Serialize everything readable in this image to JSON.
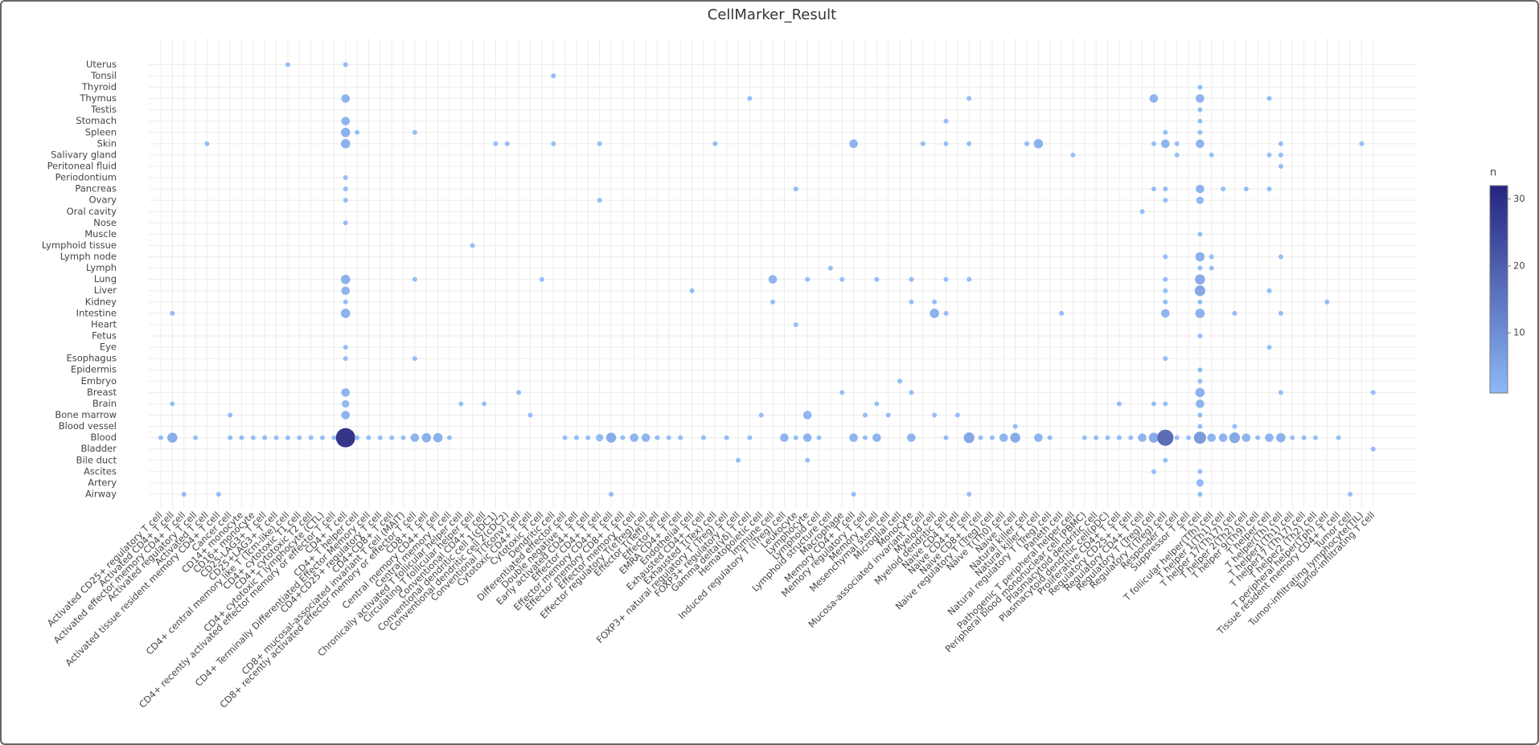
{
  "chart_data": {
    "type": "bubble",
    "title": "CellMarker_Result",
    "grid": true,
    "categories": [
      "Activated CD25+ regulatory T cell",
      "Activated CD4+ T cell",
      "Activated effector memory CD4+ T cell",
      "Activated regulatory T cell",
      "Activated T cell",
      "Activated tissue resident memory CD4+ T cell",
      "Cancer cell",
      "CD14+ monocyte",
      "CD16+ monocyte",
      "CD25-LAG3+ T cell",
      "CD25+LAG3+ T cell",
      "CD4+ central memory like T (Tcm-like) cell",
      "CD4+ cytotoxic T1 cell",
      "CD4+ cytotoxic T2 cell",
      "CD4+ cytotoxic T lymphocyte (CTL)",
      "CD4+ recently activated effector memory or effector T cell",
      "CD4+ T cell",
      "CD4+ T helper cell",
      "CD4+ Terminally Differentiated Effector Memory cell",
      "CD4+CD25+ regulatory T cell",
      "CD4+CD8+ T cell",
      "CD8+ mucosal-associated invariant T cell (MAIT)",
      "CD8+ recently activated effector memory or effector T cell",
      "CD8+ T cell",
      "Central memory CD4+ T cell",
      "Central memory T cell",
      "Chronically activated T follicular helper cell",
      "Circulating T follicular helper cell",
      "Conventional CD4+ T cell",
      "Conventional dendritic cell 1(cDC1)",
      "Conventional dendritic cell 2(cDC2)",
      "Conventional T(Tconv) cell",
      "Cytotoxic CD4+ T cell",
      "Cytotoxic T cell",
      "Dendritic cell",
      "Differentiated effector cell",
      "Double negative T cell",
      "Early activated CD4+ T cell",
      "Effector CD4+ T cell",
      "Effector memory CD4+ T cell",
      "Effector memory CD8+ T cell",
      "Effector memory T cell",
      "Effector regulatory T(eTreg) cell",
      "Effector T(Teff) cell",
      "Effector T cell",
      "EMRA CD4+ T cell",
      "Endothelial cell",
      "Exhausted CD4+ T cell",
      "Exhausted T(Tex) cell",
      "FOXP3+ natural regulatory T (Treg) cell",
      "FOXP3+ regulatory T cell",
      "Gamma delta(γδ) T cell",
      "Hematopoietic cell",
      "Immune cell",
      "Induced regulatory T (iTreg) cell",
      "Leukocyte",
      "Lymphocyte",
      "Lymphoid cell",
      "Lymphoid structure cell",
      "Macrophage",
      "Memory CD4+ T cell",
      "Memory regulatory T cell",
      "Memory T cell",
      "Mesenchymal stem cell",
      "Microglial cell",
      "Monocyte",
      "Mucosa-associated invariant T cell",
      "Myeloid cell",
      "Myeloid dendritic cell",
      "Naive CD4 T cell",
      "Naive CD4+ T cell",
      "Naive CD8+ T cell",
      "Naive regulatory T (Treg) cell",
      "Naive T(Th0) cell",
      "Naive T cell",
      "Natural killer cell",
      "Natural killer T cell",
      "Natural regulatory T (Treg) cell",
      "Paneth cell",
      "Pathogenic T peripheral helper cell",
      "Peripheral blood mononuclear cell (PBMC)",
      "Plasmacytoid dendritic cell",
      "Plasmacytoid dendritic cell(pDC)",
      "Proliferative CD4+ T cell",
      "Regulatory CD25+ T cell",
      "Regulatory CD4+ T cell",
      "Regulatory T (Treg) cell",
      "Regulatory T(Treg) cell",
      "Responder T cell",
      "Suppressor T cell",
      "T cell",
      "T follicular helper(Tfh) cell",
      "T helper 1(Th1) cell",
      "T helper 17(Th17) cell",
      "T helper 2(Th2) cell",
      "T helper 9(Th9) cell",
      "T helper cell",
      "T helper(Th) cell",
      "T helper1(Th1) cell",
      "T helper17 (Th17) cell",
      "T helper2 (Th2) cell",
      "T peripheral helper(Tph) cell",
      "Tissue resident memory CD4+ T cell",
      "Tumor cell",
      "Tumor-infiltrating lymphocyte(TIL)",
      "Tumor-infiltrating T cell"
    ],
    "series": [
      {
        "name": "Airway",
        "x": [
          "Activated effector memory CD4+ T cell",
          "Activated tissue resident memory CD4+ T cell",
          "Effector memory CD4+ T cell",
          "Memory CD4+ T cell",
          "Naive CD4+ T cell",
          "T cell",
          "Tumor cell"
        ],
        "values": [
          1,
          1,
          1,
          1,
          1,
          1,
          1
        ]
      },
      {
        "name": "Artery",
        "x": [
          "T cell"
        ],
        "values": [
          2
        ]
      },
      {
        "name": "Ascites",
        "x": [
          "Regulatory T (Treg) cell",
          "T cell"
        ],
        "values": [
          1,
          1
        ]
      },
      {
        "name": "Bile duct",
        "x": [
          "FOXP3+ regulatory T cell",
          "Lymphocyte",
          "Regulatory T(Treg) cell"
        ],
        "values": [
          1,
          1,
          1
        ]
      },
      {
        "name": "Bladder",
        "x": [
          "Tumor-infiltrating T cell"
        ],
        "values": [
          1
        ]
      },
      {
        "name": "Blood",
        "x": [
          "Activated CD25+ regulatory T cell",
          "Activated CD4+ T cell",
          "Activated regulatory T cell",
          "Cancer cell",
          "CD14+ monocyte",
          "CD16+ monocyte",
          "CD25-LAG3+ T cell",
          "CD25+LAG3+ T cell",
          "CD4+ central memory like T (Tcm-like) cell",
          "CD4+ cytotoxic T1 cell",
          "CD4+ cytotoxic T2 cell",
          "CD4+ cytotoxic T lymphocyte (CTL)",
          "CD4+ recently activated effector memory or effector T cell",
          "CD4+ T cell",
          "CD4+ T helper cell",
          "CD4+ Terminally Differentiated Effector Memory cell",
          "CD4+CD25+ regulatory T cell",
          "CD4+CD8+ T cell",
          "CD8+ mucosal-associated invariant T cell (MAIT)",
          "CD8+ recently activated effector memory or effector T cell",
          "CD8+ T cell",
          "Central memory CD4+ T cell",
          "Central memory T cell",
          "Differentiated effector cell",
          "Double negative T cell",
          "Early activated CD4+ T cell",
          "Effector CD4+ T cell",
          "Effector memory CD4+ T cell",
          "Effector memory CD8+ T cell",
          "Effector memory T cell",
          "Effector regulatory T(eTreg) cell",
          "Effector T(Teff) cell",
          "Effector T cell",
          "EMRA CD4+ T cell",
          "Exhausted CD4+ T cell",
          "FOXP3+ natural regulatory T (Treg) cell",
          "Gamma delta(γδ) T cell",
          "Induced regulatory T (iTreg) cell",
          "Leukocyte",
          "Lymphocyte",
          "Lymphoid cell",
          "Memory CD4+ T cell",
          "Memory regulatory T cell",
          "Memory T cell",
          "Monocyte",
          "Myeloid dendritic cell",
          "Naive CD4+ T cell",
          "Naive CD8+ T cell",
          "Naive regulatory T (Treg) cell",
          "Naive T(Th0) cell",
          "Naive T cell",
          "Natural killer T cell",
          "Natural regulatory T (Treg) cell",
          "Peripheral blood mononuclear cell (PBMC)",
          "Plasmacytoid dendritic cell",
          "Plasmacytoid dendritic cell(pDC)",
          "Proliferative CD4+ T cell",
          "Regulatory CD25+ T cell",
          "Regulatory CD4+ T cell",
          "Regulatory T (Treg) cell",
          "Regulatory T(Treg) cell",
          "Responder T cell",
          "Suppressor T cell",
          "T cell",
          "T follicular helper(Tfh) cell",
          "T helper 1(Th1) cell",
          "T helper 17(Th17) cell",
          "T helper 2(Th2) cell",
          "T helper 9(Th9) cell",
          "T helper cell",
          "T helper(Th) cell",
          "T helper1(Th1) cell",
          "T helper17 (Th17) cell",
          "T helper2 (Th2) cell",
          "Tissue resident memory CD4+ T cell"
        ],
        "values": [
          1,
          5,
          1,
          1,
          1,
          1,
          1,
          1,
          1,
          1,
          1,
          1,
          1,
          32,
          1,
          1,
          1,
          1,
          1,
          3,
          4,
          4,
          1,
          1,
          1,
          1,
          2,
          5,
          1,
          3,
          3,
          1,
          1,
          1,
          1,
          1,
          1,
          3,
          1,
          3,
          1,
          3,
          1,
          3,
          3,
          1,
          6,
          1,
          1,
          3,
          5,
          3,
          1,
          1,
          1,
          1,
          1,
          1,
          3,
          5,
          20,
          1,
          1,
          9,
          3,
          3,
          6,
          3,
          1,
          3,
          4,
          1,
          1,
          1,
          1
        ]
      },
      {
        "name": "Blood vessel",
        "x": [
          "Naive T cell",
          "T cell",
          "T helper 17(Th17) cell"
        ],
        "values": [
          1,
          1,
          1
        ]
      },
      {
        "name": "Bone marrow",
        "x": [
          "Cancer cell",
          "CD4+ T cell",
          "Cytotoxic CD4+ T cell",
          "Hematopoietic cell",
          "Lymphocyte",
          "Memory regulatory T cell",
          "Mesenchymal stem cell",
          "Myeloid cell",
          "Naive CD4 T cell",
          "T cell"
        ],
        "values": [
          1,
          3,
          1,
          1,
          3,
          1,
          1,
          1,
          1,
          1
        ]
      },
      {
        "name": "Brain",
        "x": [
          "Activated CD4+ T cell",
          "CD4+ T cell",
          "Chronically activated T follicular helper cell",
          "Conventional CD4+ T cell",
          "Memory T cell",
          "Proliferative CD4+ T cell",
          "Regulatory T (Treg) cell",
          "Regulatory T(Treg) cell",
          "T cell"
        ],
        "values": [
          1,
          2,
          1,
          1,
          1,
          1,
          1,
          1,
          3
        ]
      },
      {
        "name": "Breast",
        "x": [
          "CD4+ T cell",
          "Conventional T(Tconv) cell",
          "Macrophage",
          "Monocyte",
          "T cell",
          "T helper(Th) cell",
          "Tumor-infiltrating T cell"
        ],
        "values": [
          3,
          1,
          1,
          1,
          4,
          1,
          1
        ]
      },
      {
        "name": "Embryo",
        "x": [
          "Microglial cell",
          "T cell"
        ],
        "values": [
          1,
          1
        ]
      },
      {
        "name": "Epidermis",
        "x": [
          "T cell"
        ],
        "values": [
          1
        ]
      },
      {
        "name": "Esophagus",
        "x": [
          "CD4+ T cell",
          "CD8+ recently activated effector memory or effector T cell",
          "Regulatory T(Treg) cell"
        ],
        "values": [
          1,
          1,
          1
        ]
      },
      {
        "name": "Eye",
        "x": [
          "CD4+ T cell",
          "T helper cell"
        ],
        "values": [
          1,
          1
        ]
      },
      {
        "name": "Fetus",
        "x": [
          "T cell"
        ],
        "values": [
          1
        ]
      },
      {
        "name": "Heart",
        "x": [
          "Leukocyte"
        ],
        "values": [
          1
        ]
      },
      {
        "name": "Intestine",
        "x": [
          "Activated CD4+ T cell",
          "CD4+ T cell",
          "Myeloid cell",
          "Myeloid dendritic cell",
          "Paneth cell",
          "Regulatory T(Treg) cell",
          "T cell",
          "T helper 17(Th17) cell",
          "T helper(Th) cell"
        ],
        "values": [
          1,
          4,
          4,
          1,
          1,
          3,
          4,
          1,
          1
        ]
      },
      {
        "name": "Kidney",
        "x": [
          "CD4+ T cell",
          "Immune cell",
          "Monocyte",
          "Myeloid cell",
          "Regulatory T(Treg) cell",
          "T cell",
          "T peripheral helper(Tph) cell"
        ],
        "values": [
          1,
          1,
          1,
          1,
          1,
          1,
          1
        ]
      },
      {
        "name": "Liver",
        "x": [
          "CD4+ T cell",
          "Endothelial cell",
          "Regulatory T(Treg) cell",
          "T cell",
          "T helper cell"
        ],
        "values": [
          3,
          1,
          1,
          6,
          1
        ]
      },
      {
        "name": "Lung",
        "x": [
          "CD4+ T cell",
          "CD8+ recently activated effector memory or effector T cell",
          "Cytotoxic T cell",
          "Immune cell",
          "Lymphocyte",
          "Macrophage",
          "Memory T cell",
          "Monocyte",
          "Myeloid dendritic cell",
          "Naive CD4+ T cell",
          "Regulatory T(Treg) cell",
          "T cell"
        ],
        "values": [
          4,
          1,
          1,
          3,
          1,
          1,
          1,
          1,
          1,
          1,
          1,
          5
        ]
      },
      {
        "name": "Lymph",
        "x": [
          "Lymphoid structure cell",
          "T cell",
          "T follicular helper(Tfh) cell"
        ],
        "values": [
          1,
          1,
          1
        ]
      },
      {
        "name": "Lymph node",
        "x": [
          "Regulatory T(Treg) cell",
          "T cell",
          "T follicular helper(Tfh) cell",
          "T helper(Th) cell"
        ],
        "values": [
          1,
          4,
          1,
          1
        ]
      },
      {
        "name": "Lymphoid tissue",
        "x": [
          "Circulating T follicular helper cell"
        ],
        "values": [
          1
        ]
      },
      {
        "name": "Muscle",
        "x": [
          "T cell"
        ],
        "values": [
          1
        ]
      },
      {
        "name": "Nose",
        "x": [
          "CD4+ T cell"
        ],
        "values": [
          1
        ]
      },
      {
        "name": "Oral cavity",
        "x": [
          "Regulatory CD4+ T cell"
        ],
        "values": [
          1
        ]
      },
      {
        "name": "Ovary",
        "x": [
          "CD4+ T cell",
          "Effector CD4+ T cell",
          "Regulatory T(Treg) cell",
          "T cell"
        ],
        "values": [
          1,
          1,
          1,
          2
        ]
      },
      {
        "name": "Pancreas",
        "x": [
          "CD4+ T cell",
          "Leukocyte",
          "Regulatory T (Treg) cell",
          "Regulatory T(Treg) cell",
          "T cell",
          "T helper 1(Th1) cell",
          "T helper 2(Th2) cell",
          "T helper cell"
        ],
        "values": [
          1,
          1,
          1,
          1,
          3,
          1,
          1,
          1
        ]
      },
      {
        "name": "Periodontium",
        "x": [
          "CD4+ T cell"
        ],
        "values": [
          1
        ]
      },
      {
        "name": "Peritoneal fluid",
        "x": [
          "T helper(Th) cell"
        ],
        "values": [
          1
        ]
      },
      {
        "name": "Salivary gland",
        "x": [
          "Pathogenic T peripheral helper cell",
          "Responder T cell",
          "T follicular helper(Tfh) cell",
          "T helper cell",
          "T helper(Th) cell"
        ],
        "values": [
          1,
          1,
          1,
          1,
          1
        ]
      },
      {
        "name": "Skin",
        "x": [
          "Activated T cell",
          "CD4+ T cell",
          "Conventional dendritic cell 1(cDC1)",
          "Conventional dendritic cell 2(cDC2)",
          "Dendritic cell",
          "Effector CD4+ T cell",
          "Exhausted T(Tex) cell",
          "Memory CD4+ T cell",
          "Mucosa-associated invariant T cell",
          "Myeloid dendritic cell",
          "Naive CD4+ T cell",
          "Natural killer cell",
          "Natural killer T cell",
          "Regulatory T (Treg) cell",
          "Regulatory T(Treg) cell",
          "Responder T cell",
          "T cell",
          "T helper(Th) cell",
          "Tumor-infiltrating lymphocyte(TIL)"
        ],
        "values": [
          1,
          4,
          1,
          1,
          1,
          1,
          1,
          3,
          1,
          1,
          1,
          1,
          4,
          1,
          3,
          1,
          3,
          1,
          1
        ]
      },
      {
        "name": "Spleen",
        "x": [
          "CD4+ T cell",
          "CD4+ T helper cell",
          "CD8+ recently activated effector memory or effector T cell",
          "Regulatory T(Treg) cell",
          "T cell"
        ],
        "values": [
          4,
          1,
          1,
          1,
          1
        ]
      },
      {
        "name": "Stomach",
        "x": [
          "CD4+ T cell",
          "Myeloid dendritic cell",
          "T cell"
        ],
        "values": [
          3,
          1,
          1
        ]
      },
      {
        "name": "Testis",
        "x": [
          "T cell"
        ],
        "values": [
          1
        ]
      },
      {
        "name": "Thymus",
        "x": [
          "CD4+ T cell",
          "Gamma delta(γδ) T cell",
          "Naive CD4+ T cell",
          "Regulatory T (Treg) cell",
          "T cell",
          "T helper cell"
        ],
        "values": [
          3,
          1,
          1,
          3,
          3,
          1
        ]
      },
      {
        "name": "Thyroid",
        "x": [
          "T cell"
        ],
        "values": [
          1
        ]
      },
      {
        "name": "Tonsil",
        "x": [
          "Dendritic cell"
        ],
        "values": [
          1
        ]
      },
      {
        "name": "Uterus",
        "x": [
          "CD4+ central memory like T (Tcm-like) cell",
          "CD4+ T cell"
        ],
        "values": [
          1,
          1
        ]
      }
    ],
    "colorbar": {
      "title": "n",
      "range": [
        1,
        32
      ],
      "ticks": [
        10,
        20,
        30
      ],
      "colors": [
        "#8cb9f8",
        "#25247f"
      ]
    }
  }
}
